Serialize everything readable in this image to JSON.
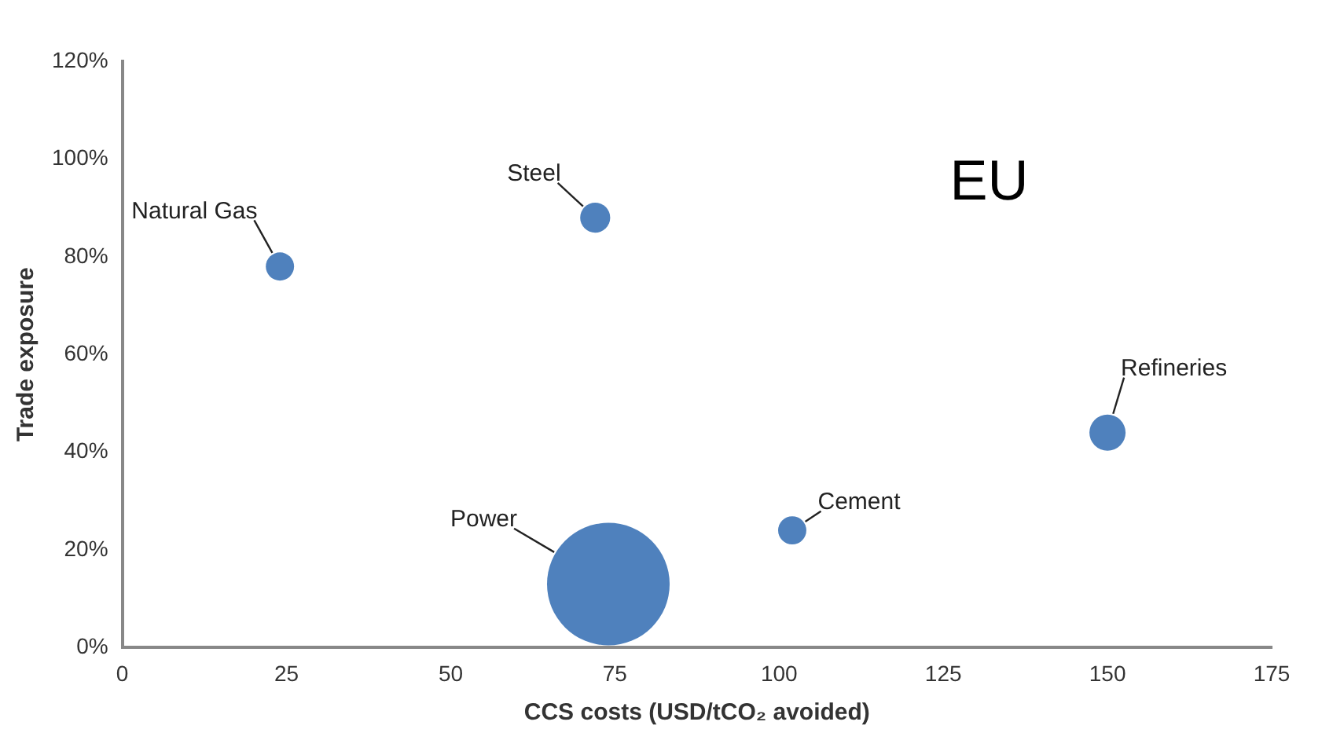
{
  "chart_data": {
    "type": "bubble",
    "xlabel": "CCS costs (USD/tCO₂ avoided)",
    "ylabel": "Trade exposure",
    "annotations": [
      "EU"
    ],
    "series": [
      {
        "name": "Natural Gas",
        "color": "#4f81bd",
        "x": [
          24
        ],
        "values": [
          78
        ],
        "sizes": [
          0.053
        ]
      },
      {
        "name": "Steel",
        "color": "#4f81bd",
        "x": [
          72
        ],
        "values": [
          88
        ],
        "sizes": [
          0.06
        ]
      },
      {
        "name": "Refineries",
        "color": "#4f81bd",
        "x": [
          150
        ],
        "values": [
          44
        ],
        "sizes": [
          0.087
        ]
      },
      {
        "name": "Cement",
        "color": "#4f81bd",
        "x": [
          102
        ],
        "values": [
          24
        ],
        "sizes": [
          0.053
        ]
      },
      {
        "name": "Power",
        "color": "#4f81bd",
        "x": [
          74
        ],
        "values": [
          13
        ],
        "sizes": [
          1
        ]
      }
    ],
    "xlim": [
      0,
      175
    ],
    "xticks": [
      0,
      25,
      50,
      75,
      100,
      125,
      150,
      175
    ],
    "ylim": [
      0,
      120
    ],
    "yticks": [
      {
        "value": 0,
        "label": "0%"
      },
      {
        "value": 20,
        "label": "20%"
      },
      {
        "value": 40,
        "label": "40%"
      },
      {
        "value": 60,
        "label": "60%"
      },
      {
        "value": 80,
        "label": "80%"
      },
      {
        "value": 100,
        "label": "100%"
      },
      {
        "value": 120,
        "label": "120%"
      }
    ],
    "grid": false,
    "legend": false
  }
}
